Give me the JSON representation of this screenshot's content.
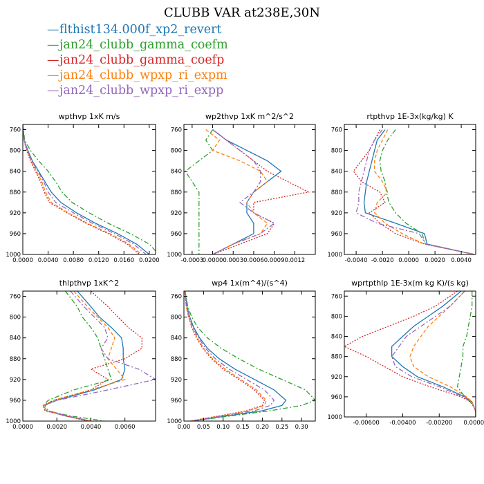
{
  "title": "CLUBB VAR at238E,30N",
  "legend": [
    {
      "label": "flthist134.000f_xp2_revert",
      "color": "#1f77b4",
      "dash": "solid"
    },
    {
      "label": "jan24_clubb_gamma_coefm",
      "color": "#2ca02c",
      "dash": "dashdot"
    },
    {
      "label": "jan24_clubb_gamma_coefp",
      "color": "#d62728",
      "dash": "dot"
    },
    {
      "label": "jan24_clubb_wpxp_ri_expm",
      "color": "#ff7f0e",
      "dash": "dash"
    },
    {
      "label": "jan24_clubb_wpxp_ri_expp",
      "color": "#9467bd",
      "dash": "dashdot"
    }
  ],
  "chart_data": [
    {
      "type": "line",
      "title": "wpthvp  1xK m/s",
      "xlim": [
        0,
        0.021
      ],
      "ylim": [
        1000,
        750
      ],
      "xticks": [
        "0.0000",
        "0.0040",
        "0.0080",
        "0.0120",
        "0.0160",
        "0.0200"
      ],
      "yticks": [
        "760",
        "800",
        "840",
        "880",
        "920",
        "960",
        "1000"
      ],
      "y": [
        750,
        780,
        800,
        820,
        840,
        860,
        880,
        900,
        920,
        940,
        960,
        980,
        1000
      ],
      "series": [
        {
          "x": [
            0.0,
            0.0002,
            0.0008,
            0.0015,
            0.0025,
            0.0035,
            0.0045,
            0.006,
            0.0085,
            0.0115,
            0.015,
            0.018,
            0.02
          ]
        },
        {
          "x": [
            0.0,
            0.0003,
            0.0012,
            0.0025,
            0.004,
            0.0052,
            0.0062,
            0.0078,
            0.0105,
            0.0135,
            0.017,
            0.02,
            0.0215
          ]
        },
        {
          "x": [
            0.0,
            0.0002,
            0.0006,
            0.0012,
            0.002,
            0.0028,
            0.0034,
            0.0042,
            0.007,
            0.01,
            0.0135,
            0.0165,
            0.0185
          ]
        },
        {
          "x": [
            0.0,
            0.0002,
            0.0007,
            0.0013,
            0.0022,
            0.003,
            0.0036,
            0.0045,
            0.0072,
            0.0102,
            0.0138,
            0.0168,
            0.0188
          ]
        },
        {
          "x": [
            0.0,
            0.0002,
            0.0007,
            0.0014,
            0.0024,
            0.0033,
            0.004,
            0.0052,
            0.008,
            0.011,
            0.0145,
            0.0175,
            0.0195
          ]
        }
      ]
    },
    {
      "type": "line",
      "title": "wp2thvp  1xK m^2/s^2",
      "xlim": [
        -0.00042,
        0.0015
      ],
      "ylim": [
        1000,
        750
      ],
      "xticks": [
        "-0.0003",
        "0.0000",
        "0.0003",
        "0.0006",
        "0.0009",
        "0.0012"
      ],
      "yticks": [
        "760",
        "800",
        "840",
        "880",
        "920",
        "960",
        "1000"
      ],
      "y": [
        760,
        780,
        800,
        820,
        840,
        860,
        880,
        900,
        920,
        940,
        960,
        980,
        1000
      ],
      "series": [
        {
          "x": [
            0.0,
            0.0002,
            0.0005,
            0.0008,
            0.001,
            0.0008,
            0.0006,
            0.0005,
            0.0005,
            0.0006,
            0.0006,
            0.0003,
            0.0
          ]
        },
        {
          "x": [
            0.0,
            -0.0001,
            0.0,
            -0.0002,
            -0.0004,
            -0.0003,
            -0.0002,
            -0.0002,
            -0.0002,
            -0.0002,
            -0.0002,
            -0.0002,
            -0.0002
          ]
        },
        {
          "x": [
            0.0,
            0.0002,
            0.0004,
            0.0006,
            0.0008,
            0.0011,
            0.0014,
            0.0006,
            0.0006,
            0.0009,
            0.0008,
            0.0004,
            0.0
          ]
        },
        {
          "x": [
            -0.0001,
            0.0001,
            0.0,
            0.0004,
            0.0007,
            0.0008,
            0.0006,
            0.0005,
            0.0006,
            0.0008,
            0.0007,
            0.0003,
            0.0
          ]
        },
        {
          "x": [
            0.0,
            0.0002,
            0.0004,
            0.0006,
            0.0007,
            0.0007,
            0.0006,
            0.0004,
            0.0006,
            0.0009,
            0.0007,
            0.0003,
            0.0
          ]
        }
      ]
    },
    {
      "type": "line",
      "title": "rtpthvp  1E-3x(kg/kg) K",
      "xlim": [
        -0.0049,
        0.0051
      ],
      "ylim": [
        1000,
        750
      ],
      "xticks": [
        "-0.0040",
        "-0.0020",
        "0.0000",
        "0.0020",
        "0.0040"
      ],
      "yticks": [
        "760",
        "800",
        "840",
        "880",
        "920",
        "960",
        "1000"
      ],
      "y": [
        760,
        780,
        800,
        820,
        840,
        860,
        880,
        900,
        920,
        940,
        960,
        980,
        1000
      ],
      "series": [
        {
          "x": [
            -0.0018,
            -0.0024,
            -0.0026,
            -0.0028,
            -0.003,
            -0.0032,
            -0.0033,
            -0.0034,
            -0.0033,
            -0.001,
            0.0012,
            0.0014,
            0.005
          ]
        },
        {
          "x": [
            -0.001,
            -0.0016,
            -0.002,
            -0.0022,
            -0.0021,
            -0.0018,
            -0.0017,
            -0.0015,
            -0.001,
            -0.0002,
            0.001,
            0.0013,
            0.005
          ]
        },
        {
          "x": [
            -0.0022,
            -0.0026,
            -0.003,
            -0.0036,
            -0.0042,
            -0.0036,
            -0.0022,
            -0.0018,
            -0.003,
            -0.0022,
            -0.001,
            0.0012,
            0.005
          ]
        },
        {
          "x": [
            -0.0016,
            -0.002,
            -0.0024,
            -0.0026,
            -0.0026,
            -0.002,
            -0.0016,
            -0.0024,
            -0.0026,
            -0.0018,
            -0.0005,
            0.0012,
            0.005
          ]
        },
        {
          "x": [
            -0.002,
            -0.0026,
            -0.003,
            -0.0032,
            -0.0034,
            -0.0036,
            -0.0038,
            -0.0038,
            -0.004,
            -0.0024,
            0.0008,
            0.0013,
            0.005
          ]
        }
      ]
    },
    {
      "type": "line",
      "title": "thlpthvp  1xK^2",
      "xlim": [
        0,
        0.0078
      ],
      "ylim": [
        1000,
        750
      ],
      "xticks": [
        "0.0000",
        "0.0020",
        "0.0040",
        "0.0060"
      ],
      "yticks": [
        "760",
        "800",
        "840",
        "880",
        "920",
        "960",
        "1000"
      ],
      "y": [
        750,
        780,
        800,
        820,
        840,
        860,
        880,
        900,
        920,
        940,
        960,
        970,
        980,
        990,
        1000
      ],
      "series": [
        {
          "x": [
            0.0032,
            0.004,
            0.0045,
            0.0052,
            0.0058,
            0.0059,
            0.0059,
            0.006,
            0.0058,
            0.0042,
            0.002,
            0.0012,
            0.0014,
            0.0025,
            0.004
          ]
        },
        {
          "x": [
            0.0025,
            0.0032,
            0.0035,
            0.004,
            0.0044,
            0.0046,
            0.0048,
            0.005,
            0.0052,
            0.003,
            0.0015,
            0.0012,
            0.0014,
            0.0028,
            0.0048
          ]
        },
        {
          "x": [
            0.004,
            0.005,
            0.0056,
            0.0062,
            0.007,
            0.007,
            0.006,
            0.004,
            0.005,
            0.004,
            0.0018,
            0.0012,
            0.0013,
            0.0025,
            0.0038
          ]
        },
        {
          "x": [
            0.003,
            0.0038,
            0.0044,
            0.005,
            0.0054,
            0.0052,
            0.005,
            0.0055,
            0.006,
            0.004,
            0.0018,
            0.0012,
            0.0014,
            0.0026,
            0.004
          ]
        },
        {
          "x": [
            0.0028,
            0.0036,
            0.0042,
            0.0048,
            0.005,
            0.0046,
            0.005,
            0.0068,
            0.0078,
            0.005,
            0.002,
            0.0013,
            0.0015,
            0.0026,
            0.004
          ]
        }
      ]
    },
    {
      "type": "line",
      "title": "wp4  1x(m^4)/(s^4)",
      "xlim": [
        0,
        0.335
      ],
      "ylim": [
        1000,
        750
      ],
      "xticks": [
        "0.00",
        "0.05",
        "0.10",
        "0.15",
        "0.20",
        "0.25",
        "0.30"
      ],
      "yticks": [
        "760",
        "800",
        "840",
        "880",
        "920",
        "960",
        "1000"
      ],
      "y": [
        750,
        780,
        800,
        820,
        840,
        860,
        880,
        900,
        920,
        940,
        960,
        970,
        980,
        990,
        1000
      ],
      "series": [
        {
          "x": [
            0.003,
            0.008,
            0.015,
            0.025,
            0.04,
            0.06,
            0.09,
            0.13,
            0.18,
            0.23,
            0.26,
            0.25,
            0.2,
            0.11,
            0.02
          ]
        },
        {
          "x": [
            0.003,
            0.01,
            0.02,
            0.035,
            0.06,
            0.095,
            0.14,
            0.19,
            0.25,
            0.31,
            0.335,
            0.3,
            0.22,
            0.12,
            0.02
          ]
        },
        {
          "x": [
            0.002,
            0.006,
            0.012,
            0.02,
            0.032,
            0.048,
            0.07,
            0.1,
            0.14,
            0.18,
            0.205,
            0.2,
            0.16,
            0.09,
            0.015
          ]
        },
        {
          "x": [
            0.002,
            0.006,
            0.012,
            0.021,
            0.034,
            0.05,
            0.073,
            0.105,
            0.145,
            0.185,
            0.21,
            0.205,
            0.165,
            0.092,
            0.015
          ]
        },
        {
          "x": [
            0.003,
            0.007,
            0.014,
            0.023,
            0.037,
            0.055,
            0.08,
            0.115,
            0.16,
            0.205,
            0.23,
            0.22,
            0.18,
            0.1,
            0.018
          ]
        }
      ]
    },
    {
      "type": "line",
      "title": "wprtpthlp  1E-3x(m kg K)/(s kg)",
      "xlim": [
        -0.0072,
        0.0
      ],
      "ylim": [
        1000,
        750
      ],
      "xticks": [
        "-0.00600",
        "-0.00400",
        "-0.00200",
        "0.00000"
      ],
      "yticks": [
        "760",
        "800",
        "840",
        "880",
        "920",
        "960",
        "1000"
      ],
      "y": [
        750,
        780,
        800,
        820,
        840,
        860,
        880,
        900,
        920,
        940,
        960,
        970,
        980,
        990,
        1000
      ],
      "series": [
        {
          "x": [
            -0.0008,
            -0.0018,
            -0.0026,
            -0.0034,
            -0.004,
            -0.0046,
            -0.0046,
            -0.004,
            -0.0032,
            -0.0018,
            -0.0006,
            -0.0002,
            -0.0001,
            0.0,
            0.0
          ]
        },
        {
          "x": [
            -0.0002,
            -0.0002,
            -0.0003,
            -0.0004,
            -0.0005,
            -0.0007,
            -0.0007,
            -0.0008,
            -0.0009,
            -0.001,
            -0.0006,
            -0.0003,
            -0.0001,
            0.0,
            0.0
          ]
        },
        {
          "x": [
            -0.001,
            -0.0022,
            -0.0034,
            -0.0048,
            -0.0062,
            -0.0072,
            -0.006,
            -0.005,
            -0.004,
            -0.0025,
            -0.0008,
            -0.0003,
            -0.0001,
            0.0,
            0.0
          ]
        },
        {
          "x": [
            -0.0006,
            -0.0014,
            -0.002,
            -0.0026,
            -0.003,
            -0.0034,
            -0.0036,
            -0.0034,
            -0.0026,
            -0.0014,
            -0.0005,
            -0.0002,
            -0.0001,
            0.0,
            0.0
          ]
        },
        {
          "x": [
            -0.0006,
            -0.0014,
            -0.0022,
            -0.003,
            -0.0038,
            -0.0042,
            -0.0046,
            -0.0044,
            -0.0035,
            -0.002,
            -0.0007,
            -0.0002,
            -0.0001,
            0.0,
            0.0
          ]
        }
      ]
    }
  ]
}
